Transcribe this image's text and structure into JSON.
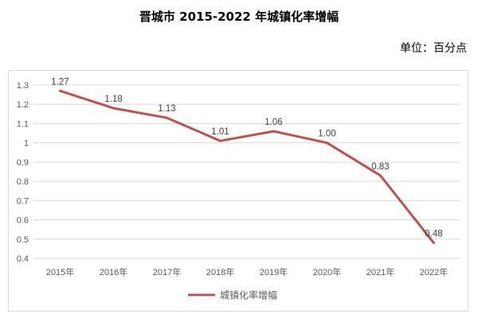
{
  "chart_data": {
    "type": "line",
    "title": "晋城市 2015-2022 年城镇化率增幅",
    "unit_label": "单位：百分点",
    "categories": [
      "2015年",
      "2016年",
      "2017年",
      "2018年",
      "2019年",
      "2020年",
      "2021年",
      "2022年"
    ],
    "series": [
      {
        "name": "城镇化率增幅",
        "values": [
          1.27,
          1.18,
          1.13,
          1.01,
          1.06,
          1.0,
          0.83,
          0.48
        ],
        "labels": [
          "1.27",
          "1.18",
          "1.13",
          "1.01",
          "1.06",
          "1.00",
          "0.83",
          "0.48"
        ],
        "color": "#c0504d"
      }
    ],
    "ylim": [
      0.4,
      1.3
    ],
    "yticks": [
      0.4,
      0.5,
      0.6,
      0.7,
      0.8,
      0.9,
      1,
      1.1,
      1.2,
      1.3
    ],
    "ytick_labels": [
      "0.4",
      "0.5",
      "0.6",
      "0.7",
      "0.8",
      "0.9",
      "1",
      "1.1",
      "1.2",
      "1.3"
    ],
    "grid": true,
    "legend_position": "bottom",
    "gridline_color": "#d9d9d9"
  }
}
